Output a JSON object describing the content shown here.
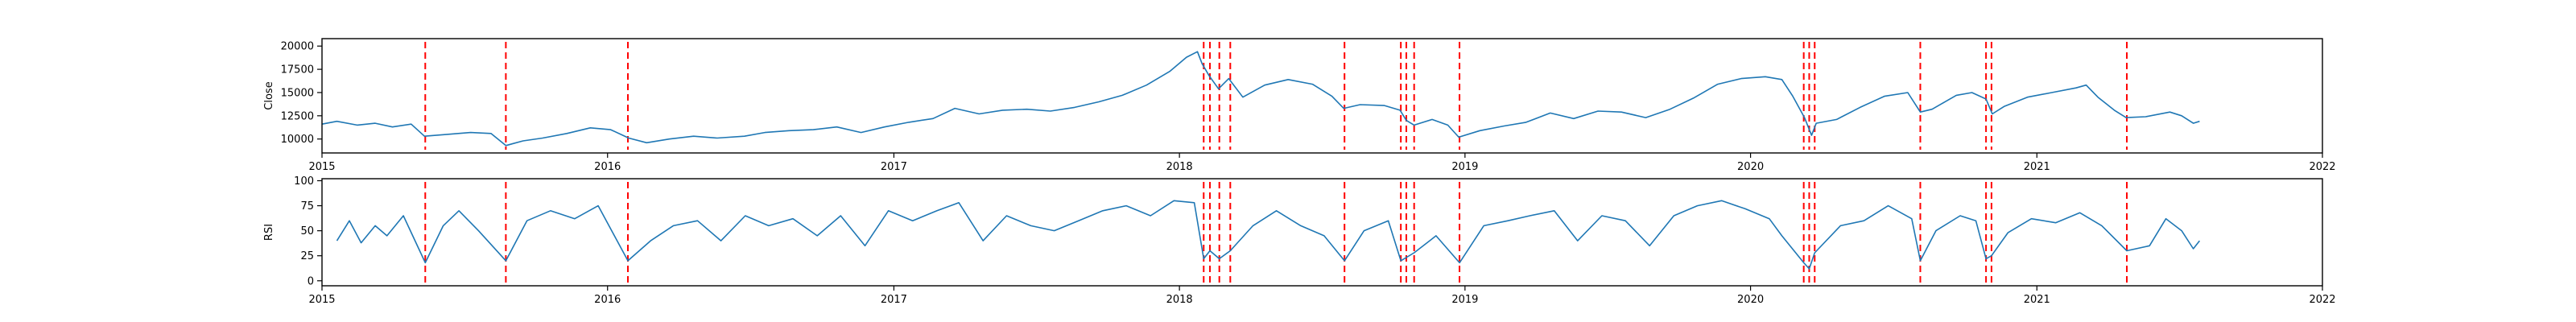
{
  "chart_data": [
    {
      "type": "line",
      "title": "",
      "xlabel": "",
      "ylabel": "Close",
      "xlim": [
        "2015-01-01",
        "2022-01-01"
      ],
      "ylim": [
        8500,
        20800
      ],
      "x_ticks": [
        "2015",
        "2016",
        "2017",
        "2018",
        "2019",
        "2020",
        "2021",
        "2022"
      ],
      "y_ticks": [
        10000,
        12500,
        15000,
        17500,
        20000
      ],
      "y_tick_labels": [
        "10000",
        "12500",
        "15000",
        "17500",
        "20000"
      ],
      "grid": false,
      "series": [
        {
          "color": "#1f77b4",
          "points": [
            [
              "2015-01-01",
              11600
            ],
            [
              "2015-01-20",
              11900
            ],
            [
              "2015-02-15",
              11500
            ],
            [
              "2015-03-10",
              11700
            ],
            [
              "2015-04-01",
              11300
            ],
            [
              "2015-04-25",
              11600
            ],
            [
              "2015-05-12",
              10300
            ],
            [
              "2015-06-10",
              10500
            ],
            [
              "2015-07-10",
              10700
            ],
            [
              "2015-08-05",
              10600
            ],
            [
              "2015-08-24",
              9300
            ],
            [
              "2015-09-15",
              9800
            ],
            [
              "2015-10-10",
              10100
            ],
            [
              "2015-11-10",
              10600
            ],
            [
              "2015-12-10",
              11200
            ],
            [
              "2016-01-05",
              11000
            ],
            [
              "2016-01-28",
              10100
            ],
            [
              "2016-02-20",
              9600
            ],
            [
              "2016-03-20",
              10000
            ],
            [
              "2016-04-20",
              10300
            ],
            [
              "2016-05-20",
              10100
            ],
            [
              "2016-06-24",
              10300
            ],
            [
              "2016-07-20",
              10700
            ],
            [
              "2016-08-20",
              10900
            ],
            [
              "2016-09-20",
              11000
            ],
            [
              "2016-10-20",
              11300
            ],
            [
              "2016-11-20",
              10700
            ],
            [
              "2016-12-20",
              11300
            ],
            [
              "2017-01-20",
              11800
            ],
            [
              "2017-02-20",
              12200
            ],
            [
              "2017-03-20",
              13300
            ],
            [
              "2017-04-20",
              12700
            ],
            [
              "2017-05-20",
              13100
            ],
            [
              "2017-06-20",
              13200
            ],
            [
              "2017-07-20",
              13000
            ],
            [
              "2017-08-20",
              13400
            ],
            [
              "2017-09-20",
              14000
            ],
            [
              "2017-10-20",
              14700
            ],
            [
              "2017-11-20",
              15800
            ],
            [
              "2017-12-20",
              17300
            ],
            [
              "2018-01-10",
              18800
            ],
            [
              "2018-01-24",
              19400
            ],
            [
              "2018-01-30",
              18100
            ],
            [
              "2018-02-08",
              16800
            ],
            [
              "2018-02-20",
              15400
            ],
            [
              "2018-03-05",
              16500
            ],
            [
              "2018-03-23",
              14500
            ],
            [
              "2018-04-20",
              15800
            ],
            [
              "2018-05-20",
              16400
            ],
            [
              "2018-06-20",
              15900
            ],
            [
              "2018-07-15",
              14600
            ],
            [
              "2018-07-30",
              13300
            ],
            [
              "2018-08-20",
              13700
            ],
            [
              "2018-09-20",
              13600
            ],
            [
              "2018-10-10",
              13100
            ],
            [
              "2018-10-18",
              12000
            ],
            [
              "2018-10-28",
              11500
            ],
            [
              "2018-11-20",
              12100
            ],
            [
              "2018-12-10",
              11500
            ],
            [
              "2018-12-24",
              10200
            ],
            [
              "2019-01-20",
              10900
            ],
            [
              "2019-02-20",
              11400
            ],
            [
              "2019-03-20",
              11800
            ],
            [
              "2019-04-20",
              12800
            ],
            [
              "2019-05-20",
              12200
            ],
            [
              "2019-06-20",
              13000
            ],
            [
              "2019-07-20",
              12900
            ],
            [
              "2019-08-20",
              12300
            ],
            [
              "2019-09-20",
              13200
            ],
            [
              "2019-10-20",
              14400
            ],
            [
              "2019-11-20",
              15900
            ],
            [
              "2019-12-20",
              16500
            ],
            [
              "2020-01-20",
              16700
            ],
            [
              "2020-02-10",
              16400
            ],
            [
              "2020-02-24",
              14600
            ],
            [
              "2020-03-10",
              12300
            ],
            [
              "2020-03-19",
              10400
            ],
            [
              "2020-03-25",
              11700
            ],
            [
              "2020-04-20",
              12100
            ],
            [
              "2020-05-20",
              13400
            ],
            [
              "2020-06-20",
              14600
            ],
            [
              "2020-07-20",
              15000
            ],
            [
              "2020-08-05",
              12900
            ],
            [
              "2020-08-20",
              13200
            ],
            [
              "2020-09-20",
              14700
            ],
            [
              "2020-10-10",
              15000
            ],
            [
              "2020-10-28",
              14300
            ],
            [
              "2020-11-05",
              12700
            ],
            [
              "2020-11-20",
              13500
            ],
            [
              "2020-12-20",
              14500
            ],
            [
              "2021-01-20",
              15000
            ],
            [
              "2021-02-20",
              15500
            ],
            [
              "2021-03-05",
              15800
            ],
            [
              "2021-03-20",
              14500
            ],
            [
              "2021-04-10",
              13100
            ],
            [
              "2021-04-25",
              12300
            ],
            [
              "2021-05-20",
              12400
            ],
            [
              "2021-06-20",
              12900
            ],
            [
              "2021-07-05",
              12500
            ],
            [
              "2021-07-20",
              11700
            ],
            [
              "2021-07-28",
              11900
            ]
          ]
        }
      ],
      "vlines": {
        "color": "#ff0000",
        "style": "dashed",
        "dates": [
          "2015-05-13",
          "2015-08-24",
          "2016-01-27",
          "2018-02-01",
          "2018-02-09",
          "2018-02-21",
          "2018-03-07",
          "2018-07-31",
          "2018-10-11",
          "2018-10-18",
          "2018-10-28",
          "2018-12-25",
          "2020-03-09",
          "2020-03-16",
          "2020-03-23",
          "2020-08-05",
          "2020-10-28",
          "2020-11-04",
          "2021-04-26"
        ]
      }
    },
    {
      "type": "line",
      "title": "",
      "xlabel": "",
      "ylabel": "RSI",
      "xlim": [
        "2015-01-01",
        "2022-01-01"
      ],
      "ylim": [
        -5,
        102
      ],
      "x_ticks": [
        "2015",
        "2016",
        "2017",
        "2018",
        "2019",
        "2020",
        "2021",
        "2022"
      ],
      "y_ticks": [
        0,
        25,
        50,
        75,
        100
      ],
      "y_tick_labels": [
        "0",
        "25",
        "50",
        "75",
        "100"
      ],
      "grid": false,
      "series": [
        {
          "color": "#1f77b4",
          "points": [
            [
              "2015-01-20",
              40
            ],
            [
              "2015-02-05",
              60
            ],
            [
              "2015-02-20",
              38
            ],
            [
              "2015-03-10",
              55
            ],
            [
              "2015-03-25",
              45
            ],
            [
              "2015-04-15",
              65
            ],
            [
              "2015-05-13",
              18
            ],
            [
              "2015-06-05",
              55
            ],
            [
              "2015-06-25",
              70
            ],
            [
              "2015-07-20",
              50
            ],
            [
              "2015-08-24",
              20
            ],
            [
              "2015-09-20",
              60
            ],
            [
              "2015-10-20",
              70
            ],
            [
              "2015-11-20",
              62
            ],
            [
              "2015-12-20",
              75
            ],
            [
              "2016-01-27",
              20
            ],
            [
              "2016-02-25",
              40
            ],
            [
              "2016-03-25",
              55
            ],
            [
              "2016-04-25",
              60
            ],
            [
              "2016-05-25",
              40
            ],
            [
              "2016-06-25",
              65
            ],
            [
              "2016-07-25",
              55
            ],
            [
              "2016-08-25",
              62
            ],
            [
              "2016-09-25",
              45
            ],
            [
              "2016-10-25",
              65
            ],
            [
              "2016-11-25",
              35
            ],
            [
              "2016-12-25",
              70
            ],
            [
              "2017-01-25",
              60
            ],
            [
              "2017-02-25",
              70
            ],
            [
              "2017-03-25",
              78
            ],
            [
              "2017-04-25",
              40
            ],
            [
              "2017-05-25",
              65
            ],
            [
              "2017-06-25",
              55
            ],
            [
              "2017-07-25",
              50
            ],
            [
              "2017-08-25",
              60
            ],
            [
              "2017-09-25",
              70
            ],
            [
              "2017-10-25",
              75
            ],
            [
              "2017-11-25",
              65
            ],
            [
              "2017-12-25",
              80
            ],
            [
              "2018-01-20",
              78
            ],
            [
              "2018-02-01",
              22
            ],
            [
              "2018-02-09",
              30
            ],
            [
              "2018-02-21",
              22
            ],
            [
              "2018-03-07",
              30
            ],
            [
              "2018-04-05",
              55
            ],
            [
              "2018-05-05",
              70
            ],
            [
              "2018-06-05",
              55
            ],
            [
              "2018-07-05",
              45
            ],
            [
              "2018-07-31",
              20
            ],
            [
              "2018-08-25",
              50
            ],
            [
              "2018-09-25",
              60
            ],
            [
              "2018-10-11",
              20
            ],
            [
              "2018-10-28",
              28
            ],
            [
              "2018-11-25",
              45
            ],
            [
              "2018-12-25",
              18
            ],
            [
              "2019-01-25",
              55
            ],
            [
              "2019-02-25",
              60
            ],
            [
              "2019-03-25",
              65
            ],
            [
              "2019-04-25",
              70
            ],
            [
              "2019-05-25",
              40
            ],
            [
              "2019-06-25",
              65
            ],
            [
              "2019-07-25",
              60
            ],
            [
              "2019-08-25",
              35
            ],
            [
              "2019-09-25",
              65
            ],
            [
              "2019-10-25",
              75
            ],
            [
              "2019-11-25",
              80
            ],
            [
              "2019-12-25",
              72
            ],
            [
              "2020-01-25",
              62
            ],
            [
              "2020-02-10",
              45
            ],
            [
              "2020-03-09",
              18
            ],
            [
              "2020-03-16",
              12
            ],
            [
              "2020-03-23",
              28
            ],
            [
              "2020-04-25",
              55
            ],
            [
              "2020-05-25",
              60
            ],
            [
              "2020-06-25",
              75
            ],
            [
              "2020-07-25",
              62
            ],
            [
              "2020-08-05",
              20
            ],
            [
              "2020-08-25",
              50
            ],
            [
              "2020-09-25",
              65
            ],
            [
              "2020-10-15",
              60
            ],
            [
              "2020-10-28",
              22
            ],
            [
              "2020-11-04",
              25
            ],
            [
              "2020-11-25",
              48
            ],
            [
              "2020-12-25",
              62
            ],
            [
              "2021-01-25",
              58
            ],
            [
              "2021-02-25",
              68
            ],
            [
              "2021-03-25",
              55
            ],
            [
              "2021-04-26",
              30
            ],
            [
              "2021-05-25",
              35
            ],
            [
              "2021-06-15",
              62
            ],
            [
              "2021-07-05",
              50
            ],
            [
              "2021-07-20",
              32
            ],
            [
              "2021-07-28",
              40
            ]
          ]
        }
      ],
      "vlines": {
        "color": "#ff0000",
        "style": "dashed",
        "dates": [
          "2015-05-13",
          "2015-08-24",
          "2016-01-27",
          "2018-02-01",
          "2018-02-09",
          "2018-02-21",
          "2018-03-07",
          "2018-07-31",
          "2018-10-11",
          "2018-10-18",
          "2018-10-28",
          "2018-12-25",
          "2020-03-09",
          "2020-03-16",
          "2020-03-23",
          "2020-08-05",
          "2020-10-28",
          "2020-11-04",
          "2021-04-26"
        ]
      }
    }
  ]
}
